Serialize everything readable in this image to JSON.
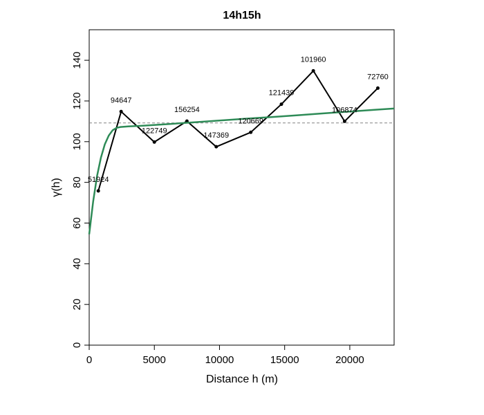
{
  "chart_data": {
    "type": "line",
    "title": "14h15h",
    "xlabel": "Distance h (m)",
    "ylabel": "γ(h)",
    "xlim": [
      0,
      23400
    ],
    "ylim": [
      0,
      155
    ],
    "xticks": [
      0,
      5000,
      10000,
      15000,
      20000
    ],
    "yticks": [
      0,
      20,
      40,
      60,
      80,
      100,
      120,
      140
    ],
    "grid": false,
    "series": [
      {
        "name": "",
        "kind": "empirical",
        "color": "#000000",
        "x": [
          700,
          2450,
          5000,
          7500,
          9750,
          12400,
          14750,
          17200,
          19600,
          22150
        ],
        "y": [
          75.8,
          114.8,
          99.8,
          110.1,
          97.5,
          104.6,
          118.4,
          134.8,
          110.0,
          126.3
        ],
        "labels": [
          "51924",
          "94647",
          "122749",
          "156254",
          "147369",
          "120669",
          "121439",
          "101960",
          "106874",
          "72760"
        ]
      },
      {
        "name": "",
        "kind": "fitted-model",
        "color": "#2e8b57",
        "x": [
          0,
          300,
          600,
          900,
          1200,
          1500,
          1800,
          2100,
          2400,
          3000,
          4000,
          6000,
          8000,
          10000,
          12000,
          14000,
          16000,
          18000,
          20000,
          22000,
          23400
        ],
        "y": [
          54.5,
          70.5,
          83.0,
          92.2,
          98.7,
          103.0,
          105.6,
          106.8,
          107.2,
          107.5,
          107.8,
          108.6,
          109.5,
          110.4,
          111.3,
          112.1,
          113.0,
          113.9,
          114.8,
          115.7,
          116.3
        ]
      }
    ],
    "reference_line": {
      "y": 109.2,
      "style": "dashed",
      "color": "#808080"
    }
  }
}
